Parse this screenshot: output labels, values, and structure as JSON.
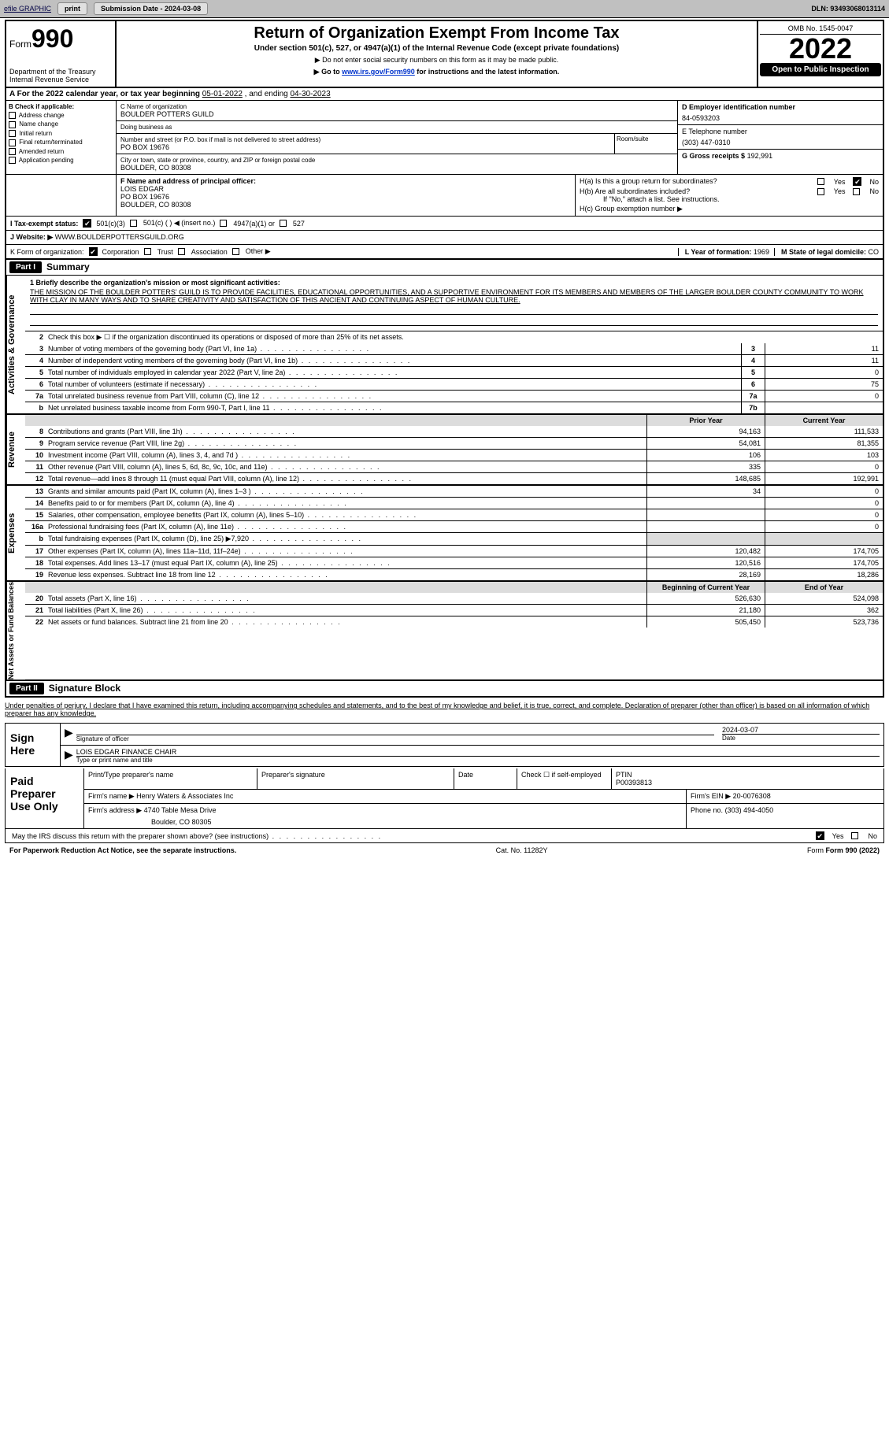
{
  "topbar": {
    "efile": "efile GRAPHIC",
    "print": "print",
    "submission": "Submission Date - 2024-03-08",
    "dln": "DLN: 93493068013114"
  },
  "header": {
    "form_label": "Form",
    "form_no": "990",
    "title": "Return of Organization Exempt From Income Tax",
    "subtitle": "Under section 501(c), 527, or 4947(a)(1) of the Internal Revenue Code (except private foundations)",
    "note1": "▶ Do not enter social security numbers on this form as it may be made public.",
    "note2_pre": "▶ Go to ",
    "note2_link": "www.irs.gov/Form990",
    "note2_post": " for instructions and the latest information.",
    "dept": "Department of the Treasury",
    "irs": "Internal Revenue Service",
    "omb": "OMB No. 1545-0047",
    "year": "2022",
    "open": "Open to Public Inspection"
  },
  "period": {
    "label": "A For the 2022 calendar year, or tax year beginning ",
    "begin": "05-01-2022",
    "mid": " , and ending ",
    "end": "04-30-2023"
  },
  "boxB": {
    "title": "B Check if applicable:",
    "opts": [
      "Address change",
      "Name change",
      "Initial return",
      "Final return/terminated",
      "Amended return",
      "Application pending"
    ]
  },
  "boxC": {
    "name_lbl": "C Name of organization",
    "name": "BOULDER POTTERS GUILD",
    "dba_lbl": "Doing business as",
    "dba": "",
    "addr_lbl": "Number and street (or P.O. box if mail is not delivered to street address)",
    "room_lbl": "Room/suite",
    "addr": "PO BOX 19676",
    "city_lbl": "City or town, state or province, country, and ZIP or foreign postal code",
    "city": "BOULDER, CO  80308"
  },
  "boxD": {
    "lbl": "D Employer identification number",
    "val": "84-0593203"
  },
  "boxE": {
    "lbl": "E Telephone number",
    "val": "(303) 447-0310"
  },
  "boxG": {
    "lbl": "G Gross receipts $",
    "val": "192,991"
  },
  "boxF": {
    "lbl": "F Name and address of principal officer:",
    "name": "LOIS EDGAR",
    "addr1": "PO BOX 19676",
    "addr2": "BOULDER, CO  80308"
  },
  "boxH": {
    "a": "H(a)  Is this a group return for subordinates?",
    "b": "H(b)  Are all subordinates included?",
    "bnote": "If \"No,\" attach a list. See instructions.",
    "c": "H(c)  Group exemption number ▶",
    "yes": "Yes",
    "no": "No"
  },
  "boxI": {
    "lbl": "I  Tax-exempt status:",
    "o1": "501(c)(3)",
    "o2": "501(c) (   ) ◀ (insert no.)",
    "o3": "4947(a)(1) or",
    "o4": "527"
  },
  "boxJ": {
    "lbl": "J  Website: ▶",
    "val": "WWW.BOULDERPOTTERSGUILD.ORG"
  },
  "boxK": {
    "lbl": "K Form of organization:",
    "o1": "Corporation",
    "o2": "Trust",
    "o3": "Association",
    "o4": "Other ▶"
  },
  "boxL": {
    "lbl": "L Year of formation:",
    "val": "1969"
  },
  "boxM": {
    "lbl": "M State of legal domicile:",
    "val": "CO"
  },
  "part1": {
    "hdr": "Part I",
    "title": "Summary",
    "sidebars": {
      "ag": "Activities & Governance",
      "rev": "Revenue",
      "exp": "Expenses",
      "na": "Net Assets or Fund Balances"
    },
    "line1_lbl": "1  Briefly describe the organization's mission or most significant activities:",
    "mission": "THE MISSION OF THE BOULDER POTTERS' GUILD IS TO PROVIDE FACILITIES, EDUCATIONAL OPPORTUNITIES, AND A SUPPORTIVE ENVIRONMENT FOR ITS MEMBERS AND MEMBERS OF THE LARGER BOULDER COUNTY COMMUNITY TO WORK WITH CLAY IN MANY WAYS AND TO SHARE CREATIVITY AND SATISFACTION OF THIS ANCIENT AND CONTINUING ASPECT OF HUMAN CULTURE.",
    "line2": "Check this box ▶ ☐ if the organization discontinued its operations or disposed of more than 25% of its net assets.",
    "col_py": "Prior Year",
    "col_cy": "Current Year",
    "col_boy": "Beginning of Current Year",
    "col_eoy": "End of Year",
    "rows_ag": [
      {
        "n": "3",
        "d": "Number of voting members of the governing body (Part VI, line 1a)",
        "sc": "3",
        "v": "11"
      },
      {
        "n": "4",
        "d": "Number of independent voting members of the governing body (Part VI, line 1b)",
        "sc": "4",
        "v": "11"
      },
      {
        "n": "5",
        "d": "Total number of individuals employed in calendar year 2022 (Part V, line 2a)",
        "sc": "5",
        "v": "0"
      },
      {
        "n": "6",
        "d": "Total number of volunteers (estimate if necessary)",
        "sc": "6",
        "v": "75"
      },
      {
        "n": "7a",
        "d": "Total unrelated business revenue from Part VIII, column (C), line 12",
        "sc": "7a",
        "v": "0"
      },
      {
        "n": "b",
        "d": "Net unrelated business taxable income from Form 990-T, Part I, line 11",
        "sc": "7b",
        "v": ""
      }
    ],
    "rows_rev": [
      {
        "n": "8",
        "d": "Contributions and grants (Part VIII, line 1h)",
        "py": "94,163",
        "cy": "111,533"
      },
      {
        "n": "9",
        "d": "Program service revenue (Part VIII, line 2g)",
        "py": "54,081",
        "cy": "81,355"
      },
      {
        "n": "10",
        "d": "Investment income (Part VIII, column (A), lines 3, 4, and 7d )",
        "py": "106",
        "cy": "103"
      },
      {
        "n": "11",
        "d": "Other revenue (Part VIII, column (A), lines 5, 6d, 8c, 9c, 10c, and 11e)",
        "py": "335",
        "cy": "0"
      },
      {
        "n": "12",
        "d": "Total revenue—add lines 8 through 11 (must equal Part VIII, column (A), line 12)",
        "py": "148,685",
        "cy": "192,991"
      }
    ],
    "rows_exp": [
      {
        "n": "13",
        "d": "Grants and similar amounts paid (Part IX, column (A), lines 1–3 )",
        "py": "34",
        "cy": "0"
      },
      {
        "n": "14",
        "d": "Benefits paid to or for members (Part IX, column (A), line 4)",
        "py": "",
        "cy": "0"
      },
      {
        "n": "15",
        "d": "Salaries, other compensation, employee benefits (Part IX, column (A), lines 5–10)",
        "py": "",
        "cy": "0"
      },
      {
        "n": "16a",
        "d": "Professional fundraising fees (Part IX, column (A), line 11e)",
        "py": "",
        "cy": "0"
      },
      {
        "n": "b",
        "d": "Total fundraising expenses (Part IX, column (D), line 25) ▶7,920",
        "py": "shade",
        "cy": "shade"
      },
      {
        "n": "17",
        "d": "Other expenses (Part IX, column (A), lines 11a–11d, 11f–24e)",
        "py": "120,482",
        "cy": "174,705"
      },
      {
        "n": "18",
        "d": "Total expenses. Add lines 13–17 (must equal Part IX, column (A), line 25)",
        "py": "120,516",
        "cy": "174,705"
      },
      {
        "n": "19",
        "d": "Revenue less expenses. Subtract line 18 from line 12",
        "py": "28,169",
        "cy": "18,286"
      }
    ],
    "rows_na": [
      {
        "n": "20",
        "d": "Total assets (Part X, line 16)",
        "py": "526,630",
        "cy": "524,098"
      },
      {
        "n": "21",
        "d": "Total liabilities (Part X, line 26)",
        "py": "21,180",
        "cy": "362"
      },
      {
        "n": "22",
        "d": "Net assets or fund balances. Subtract line 21 from line 20",
        "py": "505,450",
        "cy": "523,736"
      }
    ]
  },
  "part2": {
    "hdr": "Part II",
    "title": "Signature Block",
    "decl": "Under penalties of perjury, I declare that I have examined this return, including accompanying schedules and statements, and to the best of my knowledge and belief, it is true, correct, and complete. Declaration of preparer (other than officer) is based on all information of which preparer has any knowledge.",
    "sign_here": "Sign Here",
    "sig_of_officer": "Signature of officer",
    "date_lbl": "Date",
    "date": "2024-03-07",
    "officer": "LOIS EDGAR  FINANCE CHAIR",
    "type_lbl": "Type or print name and title",
    "paid": "Paid Preparer Use Only",
    "p_name_lbl": "Print/Type preparer's name",
    "p_sig_lbl": "Preparer's signature",
    "p_date_lbl": "Date",
    "p_check": "Check ☐ if self-employed",
    "ptin_lbl": "PTIN",
    "ptin": "P00393813",
    "firm_lbl": "Firm's name    ▶",
    "firm": "Henry Waters & Associates Inc",
    "ein_lbl": "Firm's EIN ▶",
    "ein": "20-0076308",
    "faddr_lbl": "Firm's address ▶",
    "faddr1": "4740 Table Mesa Drive",
    "faddr2": "Boulder, CO  80305",
    "phone_lbl": "Phone no.",
    "phone": "(303) 494-4050",
    "may": "May the IRS discuss this return with the preparer shown above? (see instructions)",
    "yes": "Yes",
    "no": "No"
  },
  "footer": {
    "pra": "For Paperwork Reduction Act Notice, see the separate instructions.",
    "cat": "Cat. No. 11282Y",
    "form": "Form 990 (2022)"
  }
}
